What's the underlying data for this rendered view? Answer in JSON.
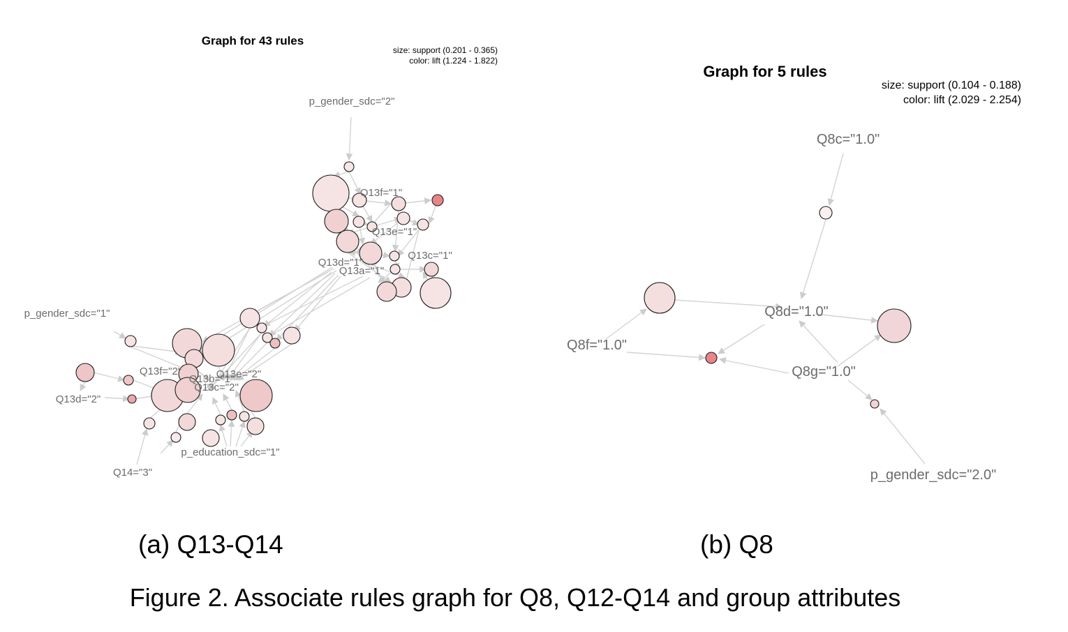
{
  "panels": [
    {
      "id": "a",
      "title": "Graph for 43 rules",
      "legend_size": "size: support (0.201 - 0.365)",
      "legend_color": "color: lift (1.224 - 1.822)",
      "subcaption": "(a) Q13-Q14",
      "items": [
        "p_gender_sdc=\"2\"",
        "Q13f=\"1\"",
        "Q13e=\"1\"",
        "Q13c=\"1\"",
        "Q13d=\"1\"",
        "Q13a=\"1\"",
        "p_gender_sdc=\"1\"",
        "Q13f=\"2\"",
        "Q13e=\"2\"",
        "Q13b=\"1\"",
        "Q13c=\"2\"",
        "Q13d=\"2\"",
        "p_education_sdc=\"1\"",
        "Q14=\"3\""
      ]
    },
    {
      "id": "b",
      "title": "Graph for 5 rules",
      "legend_size": "size: support (0.104 - 0.188)",
      "legend_color": "color: lift (2.029 - 2.254)",
      "subcaption": "(b) Q8",
      "items": [
        "Q8c=\"1.0\"",
        "Q8d=\"1.0\"",
        "Q8f=\"1.0\"",
        "Q8g=\"1.0\"",
        "p_gender_sdc=\"2.0\""
      ]
    }
  ],
  "colors": {
    "edge": "#d3d3d3",
    "low_lift": "#faecec",
    "high_lift": "#e8858a",
    "label": "#6b6b6b"
  },
  "figure_caption": "Figure 2. Associate rules graph for Q8, Q12-Q14 and group attributes"
}
